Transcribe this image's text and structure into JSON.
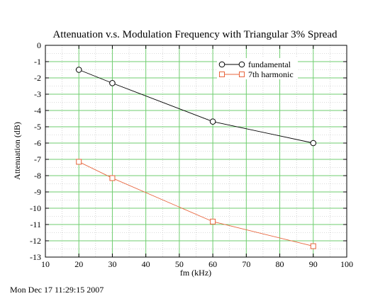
{
  "chart_data": {
    "type": "line",
    "title": "Attenuation v.s. Modulation Frequency with Triangular 3% Spread",
    "xlabel": "fm (kHz)",
    "ylabel": "Attenuation (dB)",
    "xlim": [
      10,
      100
    ],
    "ylim": [
      -13,
      0
    ],
    "xticks": [
      10,
      20,
      30,
      40,
      50,
      60,
      70,
      80,
      90,
      100
    ],
    "yticks": [
      0,
      -1,
      -2,
      -3,
      -4,
      -5,
      -6,
      -7,
      -8,
      -9,
      -10,
      -11,
      -12,
      -13
    ],
    "grid": true,
    "minor_grid": true,
    "legend_position": "top-right",
    "series": [
      {
        "name": "fundamental",
        "color": "#000000",
        "marker": "circle",
        "x": [
          20,
          30,
          60,
          90
        ],
        "y": [
          -1.5,
          -2.32,
          -4.68,
          -6.0
        ]
      },
      {
        "name": "7th harmonic",
        "color": "#e8643c",
        "marker": "square",
        "x": [
          20,
          30,
          60,
          90
        ],
        "y": [
          -7.15,
          -8.15,
          -10.82,
          -12.33
        ]
      }
    ]
  },
  "footer": {
    "timestamp": "Mon Dec 17 11:29:15 2007"
  }
}
